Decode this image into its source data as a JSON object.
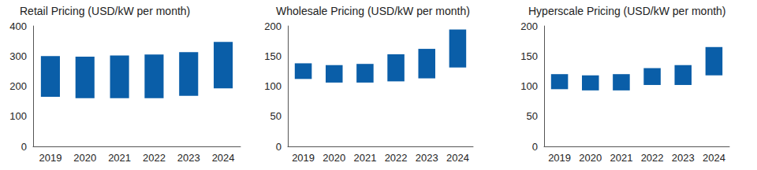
{
  "chart_data": [
    {
      "type": "range_bar",
      "title": "Retail Pricing (USD/kW per month)",
      "categories": [
        "2019",
        "2020",
        "2021",
        "2022",
        "2023",
        "2024"
      ],
      "values": [
        [
          165,
          300
        ],
        [
          160,
          298
        ],
        [
          160,
          302
        ],
        [
          160,
          305
        ],
        [
          168,
          313
        ],
        [
          193,
          347
        ]
      ],
      "color": "#0a5ea8",
      "ylim": [
        0,
        400
      ],
      "yticks": [
        0,
        100,
        200,
        300,
        400
      ],
      "grid": false
    },
    {
      "type": "range_bar",
      "title": "Wholesale Pricing (USD/kW per month)",
      "categories": [
        "2019",
        "2020",
        "2021",
        "2022",
        "2023",
        "2024"
      ],
      "values": [
        [
          112,
          138
        ],
        [
          106,
          135
        ],
        [
          106,
          137
        ],
        [
          108,
          153
        ],
        [
          113,
          162
        ],
        [
          131,
          194
        ]
      ],
      "color": "#0a5ea8",
      "ylim": [
        0,
        200
      ],
      "yticks": [
        0,
        50,
        100,
        150,
        200
      ],
      "grid": false
    },
    {
      "type": "range_bar",
      "title": "Hyperscale Pricing (USD/kW per month)",
      "categories": [
        "2019",
        "2020",
        "2021",
        "2022",
        "2023",
        "2024"
      ],
      "values": [
        [
          95,
          120
        ],
        [
          93,
          118
        ],
        [
          93,
          120
        ],
        [
          102,
          130
        ],
        [
          102,
          135
        ],
        [
          118,
          165
        ]
      ],
      "color": "#0a5ea8",
      "ylim": [
        0,
        200
      ],
      "yticks": [
        0,
        50,
        100,
        150,
        200
      ],
      "grid": false
    }
  ]
}
